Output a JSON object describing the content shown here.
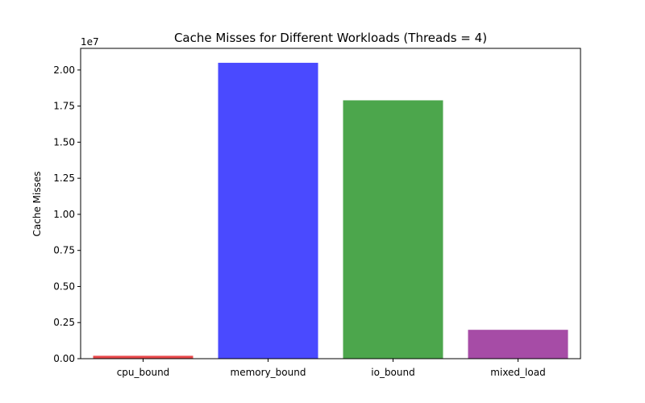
{
  "chart_data": {
    "type": "bar",
    "title": "Cache Misses for Different Workloads (Threads = 4)",
    "xlabel": "",
    "ylabel": "Cache Misses",
    "scale_label": "1e7",
    "categories": [
      "cpu_bound",
      "memory_bound",
      "io_bound",
      "mixed_load"
    ],
    "values": [
      200000,
      20500000,
      17900000,
      2000000
    ],
    "colors": [
      "#e8484a",
      "#4a4aff",
      "#4ca64c",
      "#a64ca6"
    ],
    "ylim": [
      0,
      21500000
    ],
    "yticks": [
      0,
      2500000,
      5000000,
      7500000,
      10000000,
      12500000,
      15000000,
      17500000,
      20000000
    ],
    "ytick_labels": [
      "0.00",
      "0.25",
      "0.50",
      "0.75",
      "1.00",
      "1.25",
      "1.50",
      "1.75",
      "2.00"
    ],
    "grid": false,
    "legend": "none"
  }
}
